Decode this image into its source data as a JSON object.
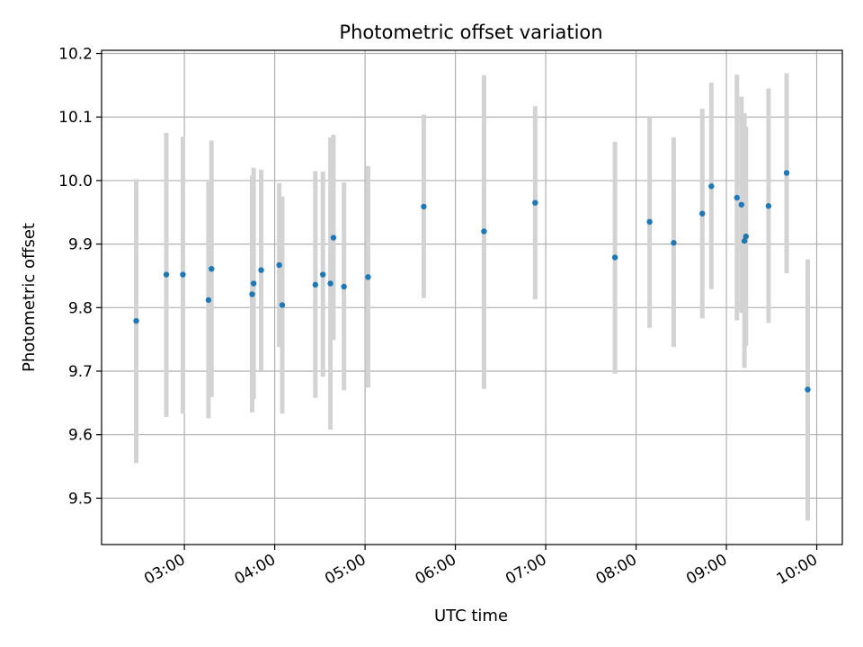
{
  "chart_data": {
    "type": "scatter",
    "title": "Photometric offset variation",
    "xlabel": "UTC time",
    "ylabel": "Photometric offset",
    "x_axis_kind": "time",
    "xlim": [
      "02:05",
      "10:17"
    ],
    "ylim": [
      9.427,
      10.205
    ],
    "x_ticks": [
      "03:00",
      "04:00",
      "05:00",
      "06:00",
      "07:00",
      "08:00",
      "09:00",
      "10:00"
    ],
    "y_ticks": [
      9.5,
      9.6,
      9.7,
      9.8,
      9.9,
      10.0,
      10.1,
      10.2
    ],
    "grid": true,
    "marker_color": "#1f77b4",
    "errorbar_color": "#d3d3d3",
    "points": [
      {
        "time": "02:28",
        "y": 9.779,
        "low": 9.555,
        "high": 10.002
      },
      {
        "time": "02:48",
        "y": 9.852,
        "low": 9.628,
        "high": 10.075
      },
      {
        "time": "02:59",
        "y": 9.852,
        "low": 9.633,
        "high": 10.069
      },
      {
        "time": "03:16",
        "y": 9.812,
        "low": 9.626,
        "high": 9.998
      },
      {
        "time": "03:18",
        "y": 9.861,
        "low": 9.659,
        "high": 10.063
      },
      {
        "time": "03:45",
        "y": 9.821,
        "low": 9.635,
        "high": 10.008
      },
      {
        "time": "03:46",
        "y": 9.838,
        "low": 9.656,
        "high": 10.02
      },
      {
        "time": "03:51",
        "y": 9.859,
        "low": 9.701,
        "high": 10.017
      },
      {
        "time": "04:03",
        "y": 9.867,
        "low": 9.738,
        "high": 9.996
      },
      {
        "time": "04:05",
        "y": 9.804,
        "low": 9.633,
        "high": 9.975
      },
      {
        "time": "04:27",
        "y": 9.836,
        "low": 9.658,
        "high": 10.015
      },
      {
        "time": "04:32",
        "y": 9.852,
        "low": 9.691,
        "high": 10.014
      },
      {
        "time": "04:37",
        "y": 9.838,
        "low": 9.608,
        "high": 10.068
      },
      {
        "time": "04:39",
        "y": 9.91,
        "low": 9.749,
        "high": 10.072
      },
      {
        "time": "04:46",
        "y": 9.833,
        "low": 9.67,
        "high": 9.997
      },
      {
        "time": "05:02",
        "y": 9.848,
        "low": 9.674,
        "high": 10.023
      },
      {
        "time": "05:39",
        "y": 9.959,
        "low": 9.815,
        "high": 10.104
      },
      {
        "time": "06:19",
        "y": 9.92,
        "low": 9.672,
        "high": 10.166
      },
      {
        "time": "06:53",
        "y": 9.965,
        "low": 9.813,
        "high": 10.117
      },
      {
        "time": "07:46",
        "y": 9.879,
        "low": 9.696,
        "high": 10.061
      },
      {
        "time": "08:09",
        "y": 9.935,
        "low": 9.768,
        "high": 10.1
      },
      {
        "time": "08:25",
        "y": 9.902,
        "low": 9.738,
        "high": 10.068
      },
      {
        "time": "08:44",
        "y": 9.948,
        "low": 9.783,
        "high": 10.113
      },
      {
        "time": "08:50",
        "y": 9.991,
        "low": 9.829,
        "high": 10.154
      },
      {
        "time": "09:07",
        "y": 9.973,
        "low": 9.78,
        "high": 10.167
      },
      {
        "time": "09:10",
        "y": 9.962,
        "low": 9.792,
        "high": 10.132
      },
      {
        "time": "09:12",
        "y": 9.905,
        "low": 9.705,
        "high": 10.106
      },
      {
        "time": "09:13",
        "y": 9.912,
        "low": 9.74,
        "high": 10.085
      },
      {
        "time": "09:28",
        "y": 9.96,
        "low": 9.776,
        "high": 10.145
      },
      {
        "time": "09:40",
        "y": 10.012,
        "low": 9.854,
        "high": 10.169
      },
      {
        "time": "09:54",
        "y": 9.671,
        "low": 9.465,
        "high": 9.876
      }
    ]
  }
}
